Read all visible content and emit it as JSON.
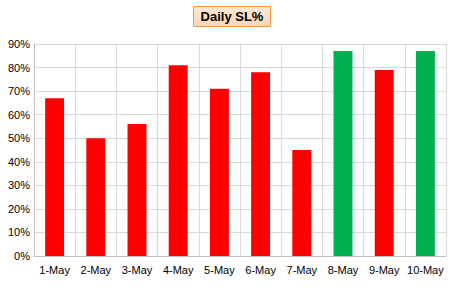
{
  "chart_data": {
    "type": "bar",
    "title": "Daily SL%",
    "categories": [
      "1-May",
      "2-May",
      "3-May",
      "4-May",
      "5-May",
      "6-May",
      "7-May",
      "8-May",
      "9-May",
      "10-May"
    ],
    "values": [
      67,
      50,
      56,
      81,
      71,
      78,
      45,
      87,
      79,
      87
    ],
    "colors": [
      "#ff0000",
      "#ff0000",
      "#ff0000",
      "#ff0000",
      "#ff0000",
      "#ff0000",
      "#ff0000",
      "#00b050",
      "#ff0000",
      "#00b050"
    ],
    "ylim": [
      0,
      90
    ],
    "yticks": [
      {
        "value": 0,
        "label": "0%"
      },
      {
        "value": 10,
        "label": "10%"
      },
      {
        "value": 20,
        "label": "20%"
      },
      {
        "value": 30,
        "label": "30%"
      },
      {
        "value": 40,
        "label": "40%"
      },
      {
        "value": 50,
        "label": "50%"
      },
      {
        "value": 60,
        "label": "60%"
      },
      {
        "value": 70,
        "label": "70%"
      },
      {
        "value": 80,
        "label": "80%"
      },
      {
        "value": 90,
        "label": "90%"
      }
    ],
    "grid": true
  }
}
